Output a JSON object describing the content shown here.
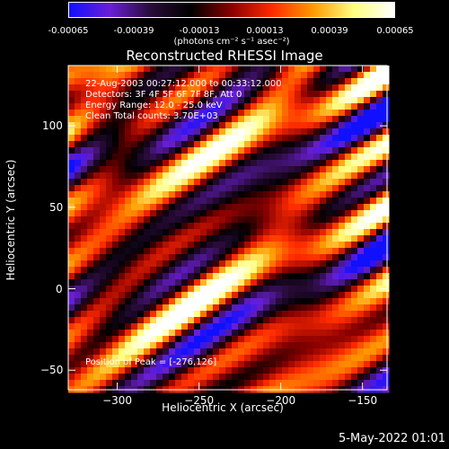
{
  "colorbar": {
    "tick_labels": [
      "-0.00065",
      "-0.00039",
      "-0.00013",
      "0.00013",
      "0.00039",
      "0.00065"
    ],
    "tick_values": [
      -0.00065,
      -0.00039,
      -0.00013,
      0.00013,
      0.00039,
      0.00065
    ],
    "units": "(photons cm⁻² s⁻¹ asec⁻²)",
    "colors": [
      "#1010ff",
      "#6a1fd6",
      "#2a0b3a",
      "#000000",
      "#8a0000",
      "#ff2a00",
      "#ff9a00",
      "#ffff80",
      "#ffffff"
    ]
  },
  "chart_data": {
    "type": "heatmap",
    "title": "Reconstructed RHESSI Image",
    "xlabel": "Heliocentric X (arcsec)",
    "ylabel": "Heliocentric Y (arcsec)",
    "xlim": [
      -330,
      -135
    ],
    "ylim": [
      -62,
      137
    ],
    "x_ticks": [
      -300,
      -250,
      -200,
      -150
    ],
    "y_ticks": [
      -50,
      0,
      50,
      100
    ],
    "annotations": [
      "22-Aug-2003 00:27:12.000 to 00:33:12.000",
      "Detectors: 3F 4F 5F 6F 7F 8F, Att 0",
      "Energy Range: 12.0 - 25.0 keV",
      "Clean     Total counts: 3.70E+03"
    ],
    "peak_label": "Position of Peak = [-276,126]",
    "peak_position": [
      -276,
      126
    ]
  },
  "timestamp": "5-May-2022 01:01"
}
